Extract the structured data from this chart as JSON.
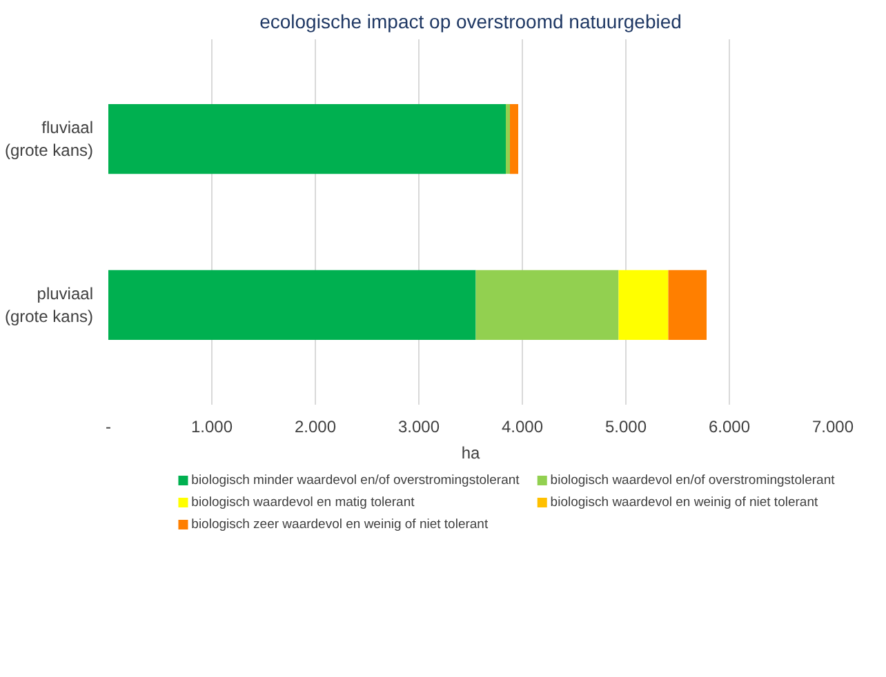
{
  "chart_data": {
    "type": "bar",
    "orientation": "horizontal",
    "stacked": true,
    "title": "ecologische impact op overstroomd natuurgebied",
    "xlabel": "ha",
    "categories": [
      "fluviaal\n(grote kans)",
      "pluviaal\n(grote kans)"
    ],
    "series": [
      {
        "name": "biologisch  minder waardevol en/of overstromingstolerant",
        "color": "#00b050",
        "values": [
          3840,
          3550
        ]
      },
      {
        "name": "biologisch waardevol en/of overstromingstolerant",
        "color": "#92d050",
        "values": [
          40,
          1380
        ]
      },
      {
        "name": "biologisch waardevol en matig tolerant",
        "color": "#ffff00",
        "values": [
          0,
          480
        ]
      },
      {
        "name": "biologisch waardevol en weinig of niet tolerant",
        "color": "#ffc000",
        "values": [
          0,
          0
        ]
      },
      {
        "name": "biologisch zeer waardevol en weinig of niet tolerant",
        "color": "#ff7f00",
        "values": [
          80,
          370
        ]
      }
    ],
    "xlim": [
      0,
      7000
    ],
    "xticks": [
      {
        "value": 0,
        "label": "-"
      },
      {
        "value": 1000,
        "label": "1.000"
      },
      {
        "value": 2000,
        "label": "2.000"
      },
      {
        "value": 3000,
        "label": "3.000"
      },
      {
        "value": 4000,
        "label": "4.000"
      },
      {
        "value": 5000,
        "label": "5.000"
      },
      {
        "value": 6000,
        "label": "6.000"
      },
      {
        "value": 7000,
        "label": "7.000"
      }
    ],
    "grid": "x",
    "legend": "bottom"
  }
}
